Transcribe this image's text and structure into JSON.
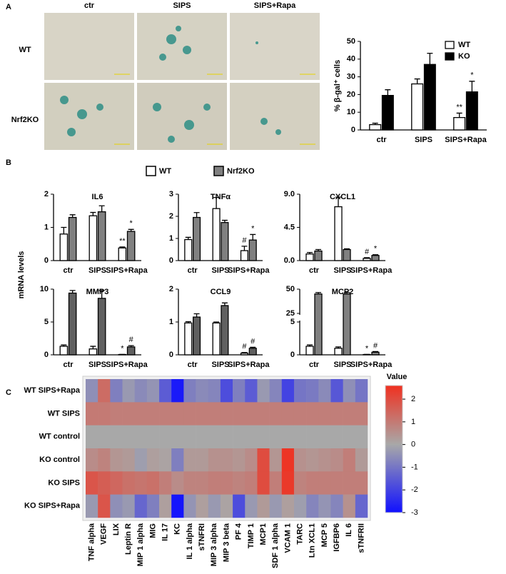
{
  "panel_labels": [
    "A",
    "B",
    "C"
  ],
  "micrographs": {
    "columns": [
      "ctr",
      "SIPS",
      "SIPS+Rapa"
    ],
    "rows": [
      "WT",
      "Nrf2KO"
    ]
  },
  "panel_b": {
    "y_label": "mRNA levels",
    "legend": [
      {
        "name": "WT",
        "color": "#ffffff"
      },
      {
        "name": "Nrf2KO",
        "color": "#808080"
      }
    ]
  },
  "chart_data": [
    {
      "type": "bar",
      "y_label": "% β-gal⁺ cells",
      "categories": [
        "ctr",
        "SIPS",
        "SIPS+Rapa"
      ],
      "ylim": [
        0,
        50
      ],
      "yticks": [
        0,
        10,
        20,
        30,
        40,
        50
      ],
      "legend": "upper right",
      "series": [
        {
          "name": "WT",
          "color": "#ffffff",
          "values": [
            3,
            26,
            7
          ],
          "errors": [
            0.8,
            2.8,
            2.5
          ],
          "significance": [
            null,
            null,
            "**"
          ]
        },
        {
          "name": "KO",
          "color": "#000000",
          "values": [
            19.5,
            37,
            21.5
          ],
          "errors": [
            3.2,
            6.3,
            6
          ],
          "significance": [
            null,
            null,
            "*"
          ]
        }
      ]
    },
    {
      "type": "bar",
      "title": "IL6",
      "categories": [
        "ctr",
        "SIPS",
        "SIPS+Rapa"
      ],
      "ylim": [
        0,
        2
      ],
      "yticks": [
        0,
        1,
        2
      ],
      "series": [
        {
          "color": "#ffffff",
          "values": [
            0.8,
            1.35,
            0.38
          ],
          "errors": [
            0.2,
            0.1,
            0.03
          ],
          "significance": [
            null,
            null,
            "**"
          ]
        },
        {
          "color": "#808080",
          "values": [
            1.3,
            1.47,
            0.88
          ],
          "errors": [
            0.08,
            0.18,
            0.06
          ],
          "significance": [
            null,
            null,
            "*"
          ]
        }
      ]
    },
    {
      "type": "bar",
      "title": "TNFα",
      "categories": [
        "ctr",
        "SIPS",
        "SIPS+Rapa"
      ],
      "ylim": [
        0,
        3
      ],
      "yticks": [
        0,
        1,
        2,
        3
      ],
      "series": [
        {
          "color": "#ffffff",
          "values": [
            0.95,
            2.35,
            0.45
          ],
          "errors": [
            0.1,
            0.5,
            0.2
          ],
          "significance": [
            null,
            null,
            "#"
          ]
        },
        {
          "color": "#808080",
          "values": [
            1.95,
            1.72,
            0.93
          ],
          "errors": [
            0.22,
            0.1,
            0.25
          ],
          "significance": [
            null,
            null,
            "*"
          ]
        }
      ]
    },
    {
      "type": "bar",
      "title": "CXCL1",
      "categories": [
        "ctr",
        "SIPS",
        "SIPS+Rapa"
      ],
      "ylim": [
        0,
        9
      ],
      "yticks": [
        {
          "value": 0,
          "label": "0.0"
        },
        {
          "value": 4.5,
          "label": "4.5"
        },
        {
          "value": 9,
          "label": "9.0"
        }
      ],
      "series": [
        {
          "color": "#ffffff",
          "values": [
            0.9,
            7.3,
            0.3
          ],
          "errors": [
            0.2,
            1.3,
            0.1
          ],
          "significance": [
            null,
            null,
            "#"
          ]
        },
        {
          "color": "#808080",
          "values": [
            1.3,
            1.5,
            0.7
          ],
          "errors": [
            0.2,
            0.1,
            0.1
          ],
          "significance": [
            null,
            null,
            "*"
          ]
        }
      ]
    },
    {
      "type": "bar",
      "title": "MMP3",
      "categories": [
        "ctr",
        "SIPS",
        "SIPS+Rapa"
      ],
      "ylim": [
        0,
        10
      ],
      "yticks": [
        0,
        5,
        10
      ],
      "series": [
        {
          "color": "#ffffff",
          "values": [
            1.3,
            0.9,
            0.05
          ],
          "errors": [
            0.2,
            0.4,
            0.02
          ],
          "significance": [
            null,
            null,
            "*"
          ]
        },
        {
          "color": "#606060",
          "values": [
            9.4,
            8.6,
            1.2
          ],
          "errors": [
            0.4,
            1.2,
            0.2
          ],
          "significance": [
            null,
            null,
            "#"
          ]
        }
      ]
    },
    {
      "type": "bar",
      "title": "CCL9",
      "categories": [
        "ctr",
        "SIPS",
        "SIPS+Rapa"
      ],
      "ylim": [
        0,
        2
      ],
      "yticks": [
        0,
        1,
        2
      ],
      "series": [
        {
          "color": "#ffffff",
          "values": [
            0.97,
            0.97,
            0.05
          ],
          "errors": [
            0.04,
            0.03,
            0.02
          ],
          "significance": [
            null,
            null,
            "#"
          ]
        },
        {
          "color": "#606060",
          "values": [
            1.15,
            1.5,
            0.2
          ],
          "errors": [
            0.1,
            0.08,
            0.03
          ],
          "significance": [
            null,
            null,
            "#"
          ]
        }
      ]
    },
    {
      "type": "bar",
      "title": "MCP2",
      "categories": [
        "ctr",
        "SIPS",
        "SIPS+Rapa"
      ],
      "ylim": [
        0,
        50
      ],
      "yticks": [
        0,
        5,
        25,
        50
      ],
      "axis_break": [
        5,
        25
      ],
      "series": [
        {
          "color": "#ffffff",
          "values": [
            1.3,
            1.0,
            0.05
          ],
          "errors": [
            0.2,
            0.2,
            0.02
          ],
          "significance": [
            null,
            null,
            "*"
          ]
        },
        {
          "color": "#808080",
          "values": [
            45,
            45,
            0.4
          ],
          "errors": [
            1.5,
            1.5,
            0.1
          ],
          "significance": [
            null,
            null,
            "#"
          ]
        }
      ]
    },
    {
      "type": "heatmap",
      "colorbar_title": "Value",
      "clim": [
        -3,
        2.6
      ],
      "colorbar_ticks": [
        2,
        1,
        0,
        -1,
        -2,
        -3
      ],
      "colors": [
        "#1010ff",
        "#a8a8a8",
        "#f03020"
      ],
      "rows": [
        "WT SIPS+Rapa",
        "WT SIPS",
        "WT control",
        "KO control",
        "KO SIPS",
        "KO SIPS+Rapa"
      ],
      "columns": [
        "TNF alpha",
        "VEGF",
        "LIX",
        "Leptin R",
        "MIP 1 alpha",
        "MIG",
        "IL 17",
        "KC",
        "IL 1 alpha",
        "sTNFRI",
        "MIP 3 alpha",
        "MIP 3 beta",
        "PF 4",
        "TIMP 1",
        "MCP1",
        "SDF 1 alpha",
        "VCAM 1",
        "TARC",
        "Ltn XCL1",
        "MCP 5",
        "IGFBP6",
        "IL 6",
        "sTNFRII"
      ],
      "values": [
        [
          -0.5,
          1.3,
          -0.8,
          -0.3,
          -0.6,
          -0.4,
          -1.5,
          -2.8,
          -0.8,
          -0.6,
          -0.7,
          -1.8,
          -0.8,
          -1.5,
          -0.3,
          -0.7,
          -2,
          -1,
          -0.9,
          -0.6,
          -1.6,
          -0.5,
          -1
        ],
        [
          1,
          1,
          0.9,
          0.9,
          0.9,
          0.9,
          0.9,
          0.9,
          0.9,
          0.9,
          0.9,
          0.9,
          0.9,
          0.9,
          0.9,
          0.9,
          0.9,
          0.9,
          0.9,
          0.9,
          0.9,
          0.9,
          0.9
        ],
        [
          0,
          0,
          0,
          0,
          0,
          0,
          0,
          0,
          0,
          0,
          0,
          0,
          0,
          0,
          0,
          0,
          0,
          0,
          0,
          0,
          0,
          0,
          0
        ],
        [
          0.6,
          0.8,
          0.4,
          0.3,
          -0.2,
          0.2,
          0.1,
          -0.8,
          0.3,
          0.3,
          0.5,
          0.5,
          0.4,
          0.6,
          2,
          0.4,
          2.5,
          0.5,
          0.4,
          0.5,
          0.6,
          0.9,
          0.3
        ],
        [
          1.8,
          1.6,
          1.4,
          1.2,
          1.1,
          1.2,
          0.9,
          0.6,
          0.8,
          0.8,
          0.9,
          0.9,
          0.8,
          0.9,
          2,
          0.9,
          2.4,
          0.8,
          0.9,
          0.9,
          0.9,
          0.9,
          0.9
        ],
        [
          -0.3,
          1.8,
          -0.5,
          -0.3,
          -1.3,
          -0.8,
          0.2,
          -2.9,
          -0.4,
          0.2,
          -0.3,
          0.1,
          -1.8,
          -0.3,
          0.3,
          -0.3,
          0.2,
          -0.2,
          -0.7,
          -0.4,
          -0.7,
          0.5,
          -1.3
        ]
      ]
    }
  ]
}
